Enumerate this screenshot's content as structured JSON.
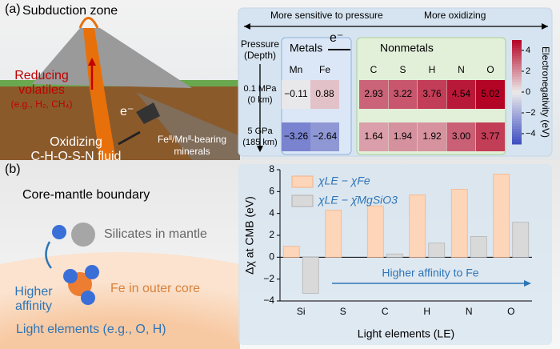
{
  "labels": {
    "a": "(a)",
    "b": "(b)"
  },
  "illustration_a": {
    "title": "Subduction zone",
    "reducing": [
      "Reducing",
      "volatiles",
      "(e.g., H₂, CH₄)"
    ],
    "electron": "e⁻",
    "oxidizing": [
      "Oxidizing",
      "C-H-O-S-N fluid"
    ],
    "minerals": [
      "Feᴵᴵ/Mnᴵᴵ-bearing",
      "minerals"
    ]
  },
  "illustration_b": {
    "title": "Core-mantle boundary",
    "silicates": "Silicates in mantle",
    "affinity": [
      "Higher",
      "affinity"
    ],
    "iron": "Fe in outer core",
    "light": "Light elements (e.g., O,  H)"
  },
  "chart_data": [
    {
      "type": "heatmap",
      "top_left": "More sensitive to pressure",
      "top_right": "More oxidizing",
      "axis_label": [
        "Pressure",
        "(Depth)"
      ],
      "groups": [
        "Metals",
        "Nonmetals"
      ],
      "electron": "e⁻",
      "x": [
        "Mn",
        "Fe",
        "C",
        "S",
        "H",
        "N",
        "O"
      ],
      "y": [
        [
          "0.1 MPa",
          "(0 km)"
        ],
        [
          "5 GPa",
          "(185 km)"
        ]
      ],
      "values": [
        [
          -0.11,
          0.88,
          2.93,
          3.22,
          3.76,
          4.54,
          5.02
        ],
        [
          -3.26,
          -2.64,
          1.64,
          1.94,
          1.92,
          3.0,
          3.77
        ]
      ],
      "value_labels": [
        [
          "−0.11",
          "0.88",
          "2.93",
          "3.22",
          "3.76",
          "4.54",
          "5.02"
        ],
        [
          "−3.26",
          "−2.64",
          "1.64",
          "1.94",
          "1.92",
          "3.00",
          "3.77"
        ]
      ],
      "colormap": [
        "#3b4cc0",
        "#ecebeb",
        "#b40426"
      ],
      "clim": [
        -5,
        5
      ],
      "colorbar_ticks": [
        {
          "value": -4,
          "label": "−4"
        },
        {
          "value": -2,
          "label": "−2"
        },
        0,
        2,
        4
      ],
      "colorbar_label": "Electronegativity (eV)"
    },
    {
      "type": "bar",
      "categories": [
        "Si",
        "S",
        "C",
        "H",
        "N",
        "O"
      ],
      "series": [
        {
          "name": "χLE − χFe",
          "color": "#fdd5b8",
          "values": [
            1.0,
            4.3,
            4.7,
            5.7,
            6.2,
            7.6
          ]
        },
        {
          "name": "χLE − χ̄MgSiO3",
          "color": "#d9d9d9",
          "values": [
            -3.3,
            0,
            0.3,
            1.3,
            1.9,
            3.2
          ]
        }
      ],
      "ylim": [
        -4,
        8
      ],
      "yticks": [
        {
          "value": -4,
          "label": "−4"
        },
        {
          "value": -2,
          "label": "−2"
        },
        0,
        2,
        4,
        6,
        8
      ],
      "ylabel": "Δχ at CMB (eV)",
      "xlabel": "Light elements (LE)",
      "annotation": "Higher affinity to Fe"
    }
  ]
}
